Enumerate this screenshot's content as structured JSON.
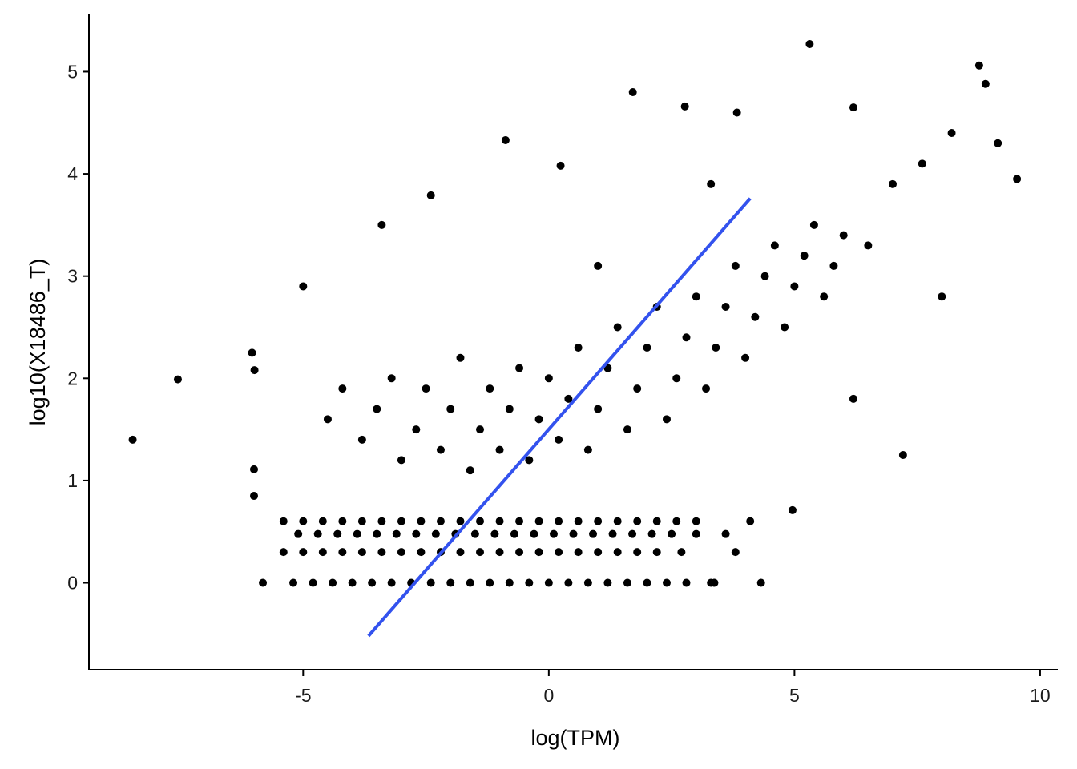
{
  "chart_data": {
    "type": "scatter",
    "x_label": "log(TPM)",
    "y_label": "log10(X18486_T)",
    "xlim": [
      -9.36,
      10.36
    ],
    "ylim": [
      -0.85,
      5.56
    ],
    "xticks": [
      -5,
      0,
      5,
      10
    ],
    "yticks": [
      0,
      1,
      2,
      3,
      4,
      5
    ],
    "color": "#000000",
    "x": [
      -8.47,
      -7.55,
      -6.04,
      -5.99,
      -6.0,
      -6.0,
      -5.82,
      5.31,
      8.76,
      1.71,
      2.77,
      -0.88,
      0.24,
      9.53,
      9.14,
      8.89,
      7.21,
      4.96,
      4.32,
      -2.4,
      3.83,
      6.2,
      -5.2,
      -4.8,
      -4.4,
      -4.0,
      -3.6,
      -3.2,
      -2.8,
      -2.4,
      -2.0,
      -1.6,
      -1.2,
      -0.8,
      -0.4,
      0,
      0.4,
      0.8,
      1.2,
      1.6,
      2.0,
      2.4,
      2.8,
      3.3,
      3.37,
      -5.4,
      -5.0,
      -4.6,
      -4.2,
      -3.8,
      -3.4,
      -3.0,
      -2.6,
      -2.2,
      -1.8,
      -1.4,
      -1.0,
      -0.6,
      -0.2,
      0.2,
      0.6,
      1.0,
      1.4,
      1.8,
      2.2,
      2.7,
      3.8,
      -5.1,
      -4.7,
      -4.3,
      -3.9,
      -3.5,
      -3.1,
      -2.7,
      -2.3,
      -1.9,
      -1.5,
      -1.1,
      -0.7,
      -0.3,
      0.1,
      0.5,
      0.9,
      1.3,
      1.7,
      2.1,
      2.5,
      3.0,
      3.6,
      -5.4,
      -5.0,
      -4.6,
      -4.2,
      -3.8,
      -3.4,
      -3.0,
      -2.6,
      -2.2,
      -1.8,
      -1.4,
      -1.0,
      -0.6,
      -0.2,
      0.2,
      0.6,
      1.0,
      1.4,
      1.8,
      2.2,
      2.6,
      3.0,
      4.1,
      -4.5,
      -4.2,
      -3.8,
      -3.5,
      -3.2,
      -3.0,
      -2.7,
      -2.5,
      -2.2,
      -2.0,
      -1.8,
      -1.6,
      -1.4,
      -1.2,
      -1.0,
      -0.8,
      -0.6,
      -0.4,
      -0.2,
      0,
      0.2,
      0.4,
      0.6,
      0.8,
      1.0,
      1.2,
      1.4,
      1.6,
      1.8,
      2.0,
      2.2,
      2.4,
      2.6,
      2.8,
      3.0,
      3.2,
      3.4,
      3.6,
      3.8,
      4.0,
      4.2,
      4.4,
      4.6,
      4.8,
      5.0,
      5.2,
      5.4,
      5.6,
      5.8,
      6.0,
      6.5,
      7.0,
      7.6,
      8.2,
      -5.0,
      -3.4,
      1.0,
      3.3,
      8.0,
      6.2
    ],
    "y": [
      1.4,
      1.99,
      2.25,
      2.08,
      1.11,
      0.85,
      0,
      5.27,
      5.06,
      4.8,
      4.66,
      4.33,
      4.08,
      3.95,
      4.3,
      4.88,
      1.25,
      0.71,
      0,
      3.79,
      4.6,
      4.65,
      0,
      0,
      0,
      0,
      0,
      0,
      0,
      0,
      0,
      0,
      0,
      0,
      0,
      0,
      0,
      0,
      0,
      0,
      0,
      0,
      0,
      0,
      0,
      0.301,
      0.301,
      0.301,
      0.301,
      0.301,
      0.301,
      0.301,
      0.301,
      0.301,
      0.301,
      0.301,
      0.301,
      0.301,
      0.301,
      0.301,
      0.301,
      0.301,
      0.301,
      0.301,
      0.301,
      0.301,
      0.301,
      0.477,
      0.477,
      0.477,
      0.477,
      0.477,
      0.477,
      0.477,
      0.477,
      0.477,
      0.477,
      0.477,
      0.477,
      0.477,
      0.477,
      0.477,
      0.477,
      0.477,
      0.477,
      0.477,
      0.477,
      0.477,
      0.477,
      0.602,
      0.602,
      0.602,
      0.602,
      0.602,
      0.602,
      0.602,
      0.602,
      0.602,
      0.602,
      0.602,
      0.602,
      0.602,
      0.602,
      0.602,
      0.602,
      0.602,
      0.602,
      0.602,
      0.602,
      0.602,
      0.602,
      0.602,
      1.6,
      1.9,
      1.4,
      1.7,
      2.0,
      1.2,
      1.5,
      1.9,
      1.3,
      1.7,
      2.2,
      1.1,
      1.5,
      1.9,
      1.3,
      1.7,
      2.1,
      1.2,
      1.6,
      2.0,
      1.4,
      1.8,
      2.3,
      1.3,
      1.7,
      2.1,
      2.5,
      1.5,
      1.9,
      2.3,
      2.7,
      1.6,
      2.0,
      2.4,
      2.8,
      1.9,
      2.3,
      2.7,
      3.1,
      2.2,
      2.6,
      3.0,
      3.3,
      2.5,
      2.9,
      3.2,
      3.5,
      2.8,
      3.1,
      3.4,
      3.3,
      3.9,
      4.1,
      4.4,
      2.9,
      3.5,
      3.1,
      3.9,
      2.8,
      1.8
    ],
    "fit_line": {
      "x": [
        -3.67,
        4.1
      ],
      "y": [
        -0.52,
        3.76
      ],
      "color": "#3352ee"
    }
  }
}
